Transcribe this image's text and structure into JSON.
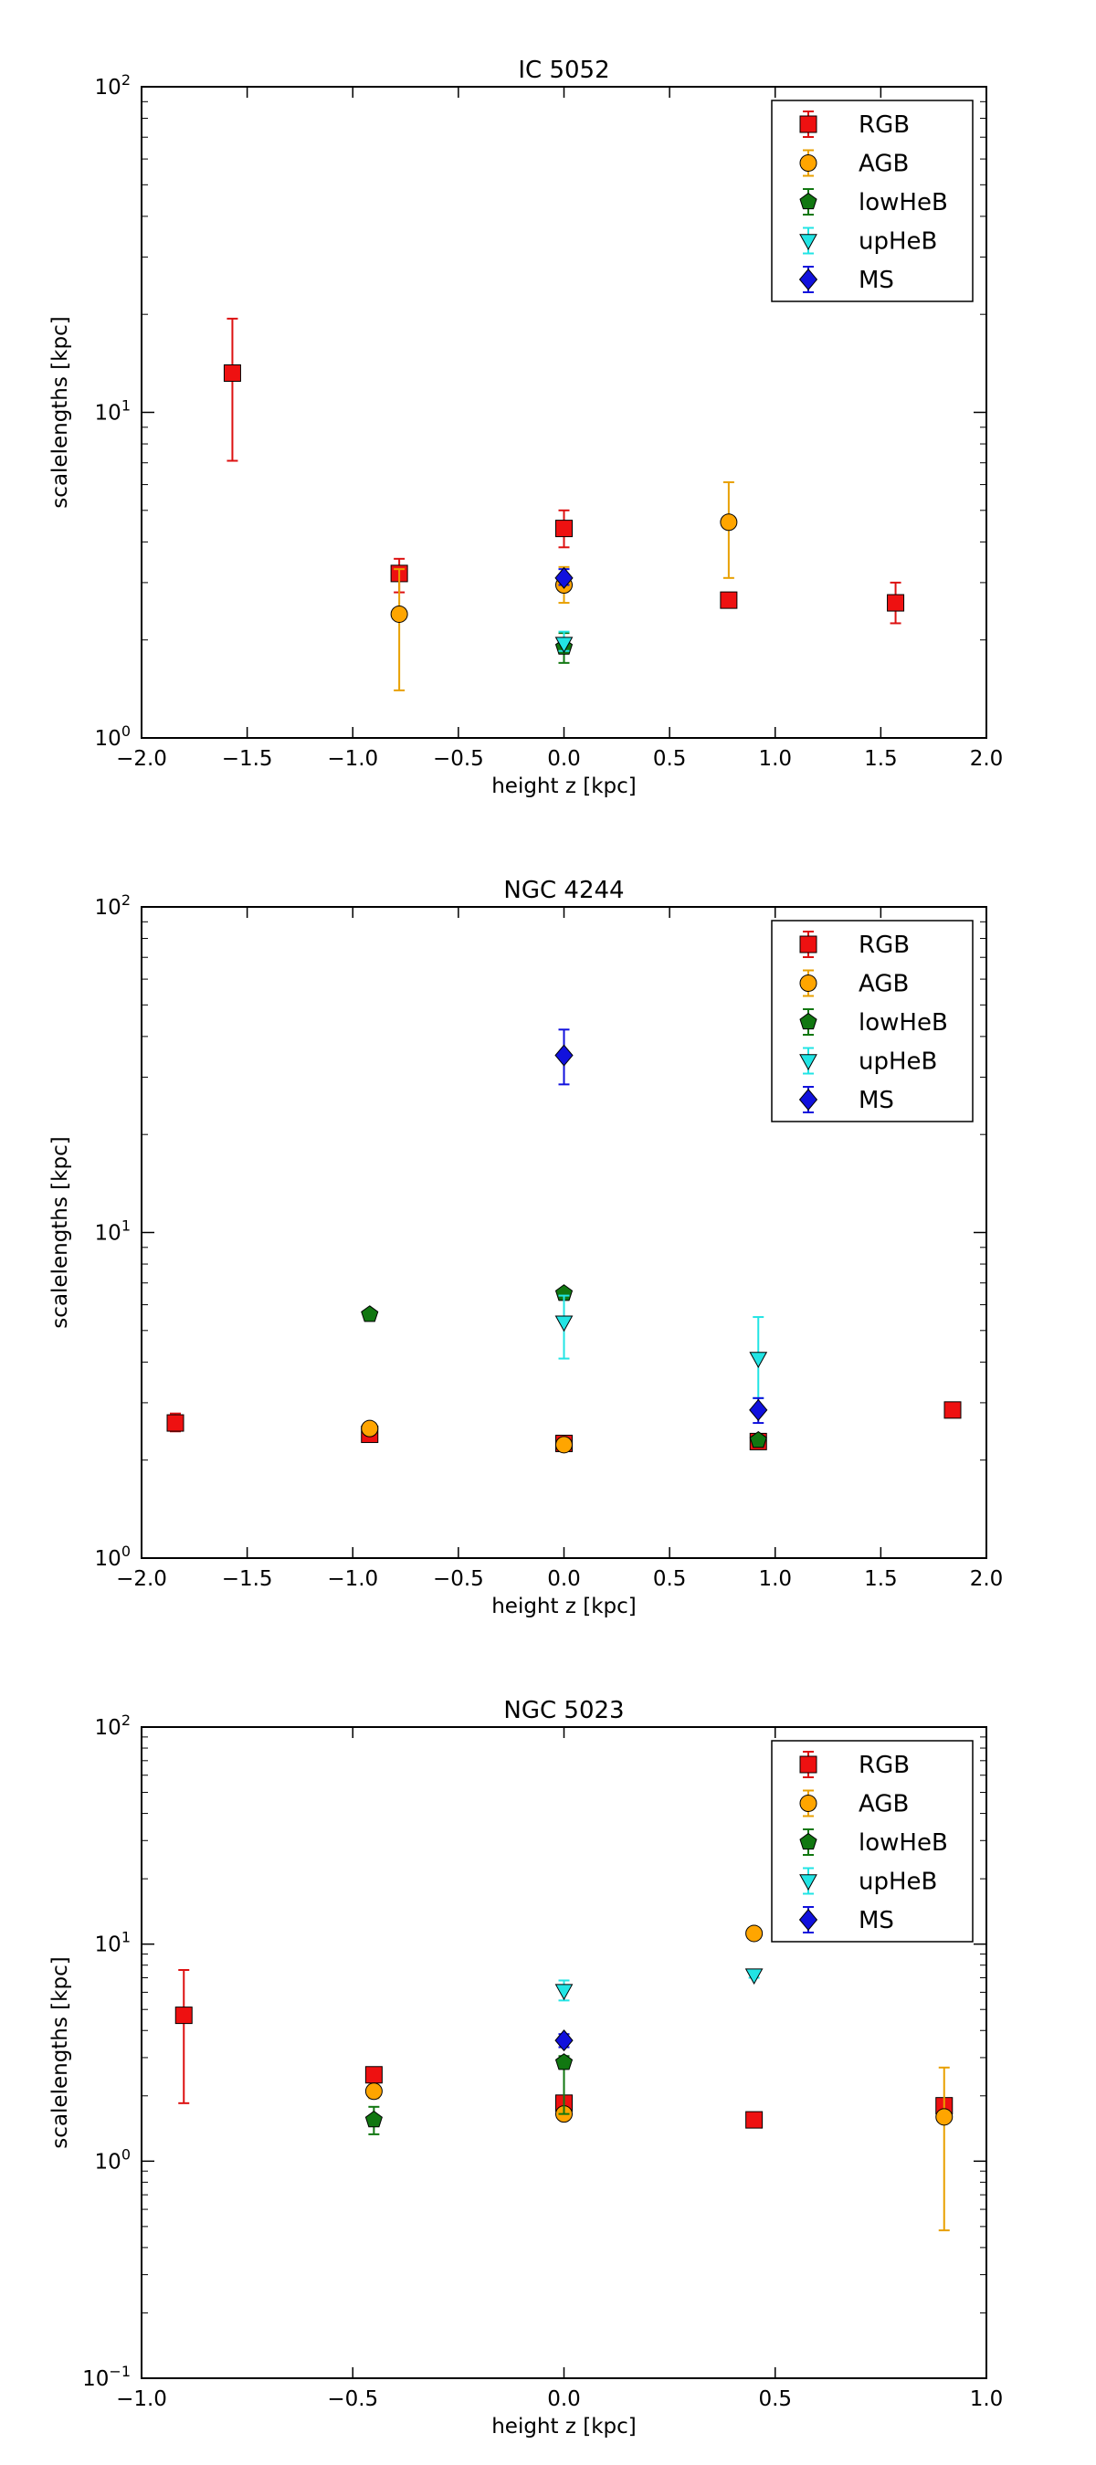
{
  "figure": {
    "background": "#ffffff"
  },
  "styles": {
    "RGB": {
      "marker": "square",
      "fill": "#ee1111",
      "err": "#dd1111"
    },
    "AGB": {
      "marker": "circle",
      "fill": "#ffa500",
      "err": "#e8a000"
    },
    "lowHeB": {
      "marker": "pentagon",
      "fill": "#117711",
      "err": "#117711"
    },
    "upHeB": {
      "marker": "tri-down",
      "fill": "#22e4e4",
      "err": "#22e4e4"
    },
    "MS": {
      "marker": "diamond",
      "fill": "#1111dd",
      "err": "#1111dd"
    }
  },
  "chart_data": [
    {
      "type": "scatter",
      "title": "IC 5052",
      "xlabel": "height z [kpc]",
      "ylabel": "scalelengths [kpc]",
      "xlim": [
        -2.0,
        2.0
      ],
      "ylim": [
        1,
        100
      ],
      "yscale": "log",
      "xticks": [
        -2.0,
        -1.5,
        -1.0,
        -0.5,
        0.0,
        0.5,
        1.0,
        1.5,
        2.0
      ],
      "xtick_labels": [
        "−2.0",
        "−1.5",
        "−1.0",
        "−0.5",
        "0.0",
        "0.5",
        "1.0",
        "1.5",
        "2.0"
      ],
      "ytick_exps": [
        "0",
        "1",
        "2"
      ],
      "grid": false,
      "legend_position": "top-right",
      "series": [
        {
          "name": "RGB",
          "points": [
            {
              "x": -1.57,
              "y": 13.2,
              "lo": 7.1,
              "hi": 19.4
            },
            {
              "x": -0.78,
              "y": 3.2,
              "lo": 2.8,
              "hi": 3.55
            },
            {
              "x": 0.0,
              "y": 4.4,
              "lo": 3.85,
              "hi": 5.0
            },
            {
              "x": 0.78,
              "y": 2.65,
              "lo": 2.55,
              "hi": 2.78
            },
            {
              "x": 1.57,
              "y": 2.6,
              "lo": 2.25,
              "hi": 3.0
            }
          ]
        },
        {
          "name": "AGB",
          "points": [
            {
              "x": -0.78,
              "y": 2.4,
              "lo": 1.4,
              "hi": 3.3
            },
            {
              "x": 0.0,
              "y": 2.95,
              "lo": 2.6,
              "hi": 3.35
            },
            {
              "x": 0.78,
              "y": 4.6,
              "lo": 3.1,
              "hi": 6.1
            }
          ]
        },
        {
          "name": "lowHeB",
          "points": [
            {
              "x": 0.0,
              "y": 1.9,
              "lo": 1.7,
              "hi": 2.1
            }
          ]
        },
        {
          "name": "upHeB",
          "points": [
            {
              "x": 0.0,
              "y": 1.95,
              "lo": 1.85,
              "hi": 2.12
            }
          ]
        },
        {
          "name": "MS",
          "points": [
            {
              "x": 0.0,
              "y": 3.1,
              "lo": 2.95,
              "hi": 3.3
            }
          ]
        }
      ]
    },
    {
      "type": "scatter",
      "title": "NGC 4244",
      "xlabel": "height z [kpc]",
      "ylabel": "scalelengths [kpc]",
      "xlim": [
        -2.0,
        2.0
      ],
      "ylim": [
        1,
        100
      ],
      "yscale": "log",
      "xticks": [
        -2.0,
        -1.5,
        -1.0,
        -0.5,
        0.0,
        0.5,
        1.0,
        1.5,
        2.0
      ],
      "xtick_labels": [
        "−2.0",
        "−1.5",
        "−1.0",
        "−0.5",
        "0.0",
        "0.5",
        "1.0",
        "1.5",
        "2.0"
      ],
      "ytick_exps": [
        "0",
        "1",
        "2"
      ],
      "grid": false,
      "legend_position": "top-right",
      "series": [
        {
          "name": "RGB",
          "points": [
            {
              "x": -1.84,
              "y": 2.6,
              "lo": 2.45,
              "hi": 2.78
            },
            {
              "x": -0.92,
              "y": 2.4,
              "lo": 2.33,
              "hi": 2.48
            },
            {
              "x": 0.0,
              "y": 2.25,
              "lo": 2.18,
              "hi": 2.32
            },
            {
              "x": 0.92,
              "y": 2.28,
              "lo": 2.22,
              "hi": 2.35
            },
            {
              "x": 1.84,
              "y": 2.85,
              "lo": 2.77,
              "hi": 2.93
            }
          ]
        },
        {
          "name": "AGB",
          "points": [
            {
              "x": -0.92,
              "y": 2.5,
              "lo": 2.42,
              "hi": 2.58
            },
            {
              "x": 0.0,
              "y": 2.23,
              "lo": 2.15,
              "hi": 2.31
            }
          ]
        },
        {
          "name": "lowHeB",
          "points": [
            {
              "x": -0.92,
              "y": 5.6,
              "lo": 5.45,
              "hi": 5.75
            },
            {
              "x": 0.0,
              "y": 6.5,
              "lo": 6.3,
              "hi": 6.7
            },
            {
              "x": 0.92,
              "y": 2.3,
              "lo": 2.23,
              "hi": 2.37
            }
          ]
        },
        {
          "name": "upHeB",
          "points": [
            {
              "x": 0.0,
              "y": 5.3,
              "lo": 4.1,
              "hi": 6.4
            },
            {
              "x": 0.92,
              "y": 4.1,
              "lo": 3.1,
              "hi": 5.5
            }
          ]
        },
        {
          "name": "MS",
          "points": [
            {
              "x": 0.0,
              "y": 35,
              "lo": 28.5,
              "hi": 42
            },
            {
              "x": 0.92,
              "y": 2.85,
              "lo": 2.6,
              "hi": 3.1
            }
          ]
        }
      ]
    },
    {
      "type": "scatter",
      "title": "NGC 5023",
      "xlabel": "height z [kpc]",
      "ylabel": "scalelengths [kpc]",
      "xlim": [
        -1.0,
        1.0
      ],
      "ylim": [
        0.1,
        100
      ],
      "yscale": "log",
      "xticks": [
        -1.0,
        -0.5,
        0.0,
        0.5,
        1.0
      ],
      "xtick_labels": [
        "−1.0",
        "−0.5",
        "0.0",
        "0.5",
        "1.0"
      ],
      "ytick_exps": [
        "−1",
        "0",
        "1",
        "2"
      ],
      "grid": false,
      "legend_position": "top-right",
      "series": [
        {
          "name": "RGB",
          "points": [
            {
              "x": -0.9,
              "y": 4.7,
              "lo": 1.85,
              "hi": 7.6
            },
            {
              "x": -0.45,
              "y": 2.5,
              "lo": 2.38,
              "hi": 2.62
            },
            {
              "x": 0.0,
              "y": 1.85,
              "lo": 1.75,
              "hi": 1.95
            },
            {
              "x": 0.45,
              "y": 1.55,
              "lo": 1.5,
              "hi": 1.6
            },
            {
              "x": 0.9,
              "y": 1.8,
              "lo": 1.72,
              "hi": 1.88
            }
          ]
        },
        {
          "name": "AGB",
          "points": [
            {
              "x": -0.45,
              "y": 2.1,
              "lo": 1.95,
              "hi": 2.25
            },
            {
              "x": 0.0,
              "y": 1.65,
              "lo": 1.58,
              "hi": 1.72
            },
            {
              "x": 0.45,
              "y": 11.2,
              "lo": 10.6,
              "hi": 11.8
            },
            {
              "x": 0.9,
              "y": 1.6,
              "lo": 0.48,
              "hi": 2.7
            }
          ]
        },
        {
          "name": "lowHeB",
          "points": [
            {
              "x": -0.45,
              "y": 1.55,
              "lo": 1.33,
              "hi": 1.78
            },
            {
              "x": 0.0,
              "y": 2.85,
              "lo": 1.65,
              "hi": 3.05
            }
          ]
        },
        {
          "name": "upHeB",
          "points": [
            {
              "x": 0.0,
              "y": 6.1,
              "lo": 5.5,
              "hi": 6.8
            },
            {
              "x": 0.45,
              "y": 7.2,
              "lo": 7.0,
              "hi": 7.4
            }
          ]
        },
        {
          "name": "MS",
          "points": [
            {
              "x": 0.0,
              "y": 3.6,
              "lo": 3.35,
              "hi": 3.85
            }
          ]
        }
      ]
    }
  ]
}
